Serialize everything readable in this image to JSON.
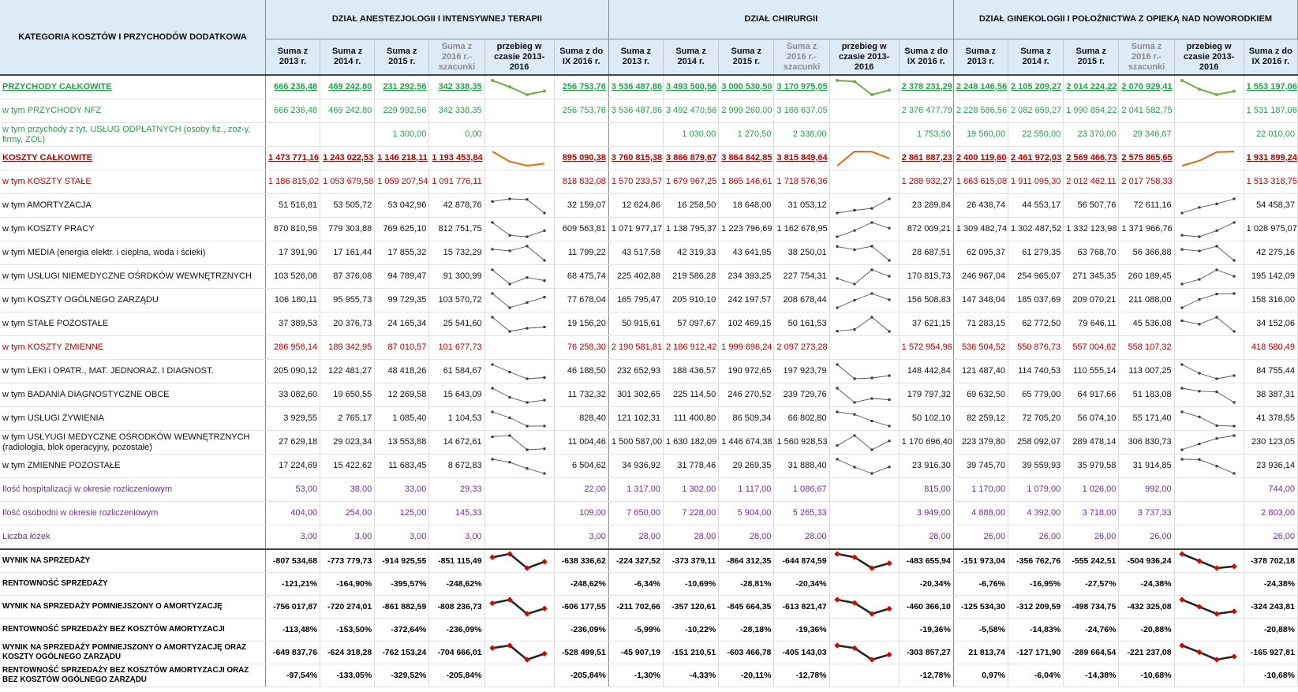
{
  "table": {
    "category_header": "KATEGORIA KOSZTÓW I PRZYCHODÓW DODATKOWA",
    "departments": [
      "DZIAŁ ANESTEZJOLOGII I INTENSYWNEJ TERAPII",
      "DZIAŁ CHIRURGII",
      "DZIAŁ GINEKOLOGII I POŁOŻNICTWA Z OPIEKĄ NAD NOWORODKIEM"
    ],
    "columns": [
      "Suma z 2013 r.",
      "Suma z 2014 r.",
      "Suma z 2015 r.",
      "Suma z 2016 r.-szacunki",
      "przebieg w czasie 2013-2016",
      "Suma z do IX 2016 r."
    ],
    "rows": [
      {
        "label": "PRZYCHODY CAŁKOWITE",
        "style": "hrev",
        "h": "r1",
        "spark": "hrev",
        "d": [
          [
            "666 236,48",
            "469 242,80",
            "231 292,56",
            "342 338,35",
            "256 753,76"
          ],
          [
            "3 536 487,86",
            "3 493 500,56",
            "3 000 530,50",
            "3 170 975,05",
            "2 378 231,29"
          ],
          [
            "2 248 146,56",
            "2 105 209,27",
            "2 014 224,22",
            "2 070 929,41",
            "1 553 197,06"
          ]
        ]
      },
      {
        "label": "w tym PRZYCHODY NFZ",
        "style": "rev",
        "h": "r1",
        "d": [
          [
            "666 236,48",
            "469 242,80",
            "229 992,56",
            "342 338,35",
            "256 753,76"
          ],
          [
            "3 536 487,86",
            "3 492 470,56",
            "2 999 260,00",
            "3 168 637,05",
            "2 376 477,79"
          ],
          [
            "2 228 586,56",
            "2 082 659,27",
            "1 990 854,22",
            "2 041 582,75",
            "1 531 187,06"
          ]
        ]
      },
      {
        "label": "w tym przychody z tyt. USŁUG ODPŁATNYCH (osoby fiz., zoz-y, firmy, ZOL)",
        "style": "rev",
        "h": "r1",
        "d": [
          [
            "",
            "",
            "1 300,00",
            "0,00",
            ""
          ],
          [
            "",
            "1 030,00",
            "1 270,50",
            "2 338,00",
            "1 753,50"
          ],
          [
            "19 560,00",
            "22 550,00",
            "23 370,00",
            "29 346,67",
            "22 010,00"
          ]
        ]
      },
      {
        "label": "KOSZTY CAŁKOWITE",
        "style": "hcost",
        "h": "r1",
        "spark": "hcost",
        "d": [
          [
            "1 473 771,16",
            "1 243 022,53",
            "1 146 218,11",
            "1 193 453,84",
            "895 090,38"
          ],
          [
            "3 760 815,38",
            "3 866 879,67",
            "3 864 842,85",
            "3 815 849,64",
            "2 861 887,23"
          ],
          [
            "2 400 119,60",
            "2 461 972,03",
            "2 569 466,73",
            "2 575 865,65",
            "1 931 899,24"
          ]
        ]
      },
      {
        "label": "w tym KOSZTY STAŁE",
        "style": "sub",
        "h": "r1",
        "d": [
          [
            "1 186 815,02",
            "1 053 679,58",
            "1 059 207,54",
            "1 091 776,11",
            "818 832,08"
          ],
          [
            "1 570 233,57",
            "1 679 967,25",
            "1 865 146,61",
            "1 718 576,36",
            "1 288 932,27"
          ],
          [
            "1 863 615,08",
            "1 911 095,30",
            "2 012 462,11",
            "2 017 758,33",
            "1 513 318,75"
          ]
        ]
      },
      {
        "label": "w tym AMORTYZACJA",
        "style": "norm",
        "h": "r1",
        "spark": "norm",
        "d": [
          [
            "51 516,81",
            "53 505,72",
            "53 042,96",
            "42 878,76",
            "32 159,07"
          ],
          [
            "12 624,86",
            "16 258,50",
            "18 648,00",
            "31 053,12",
            "23 289,84"
          ],
          [
            "26 438,74",
            "44 553,17",
            "56 507,76",
            "72 611,16",
            "54 458,37"
          ]
        ]
      },
      {
        "label": "w tym KOSZTY PRACY",
        "style": "norm",
        "h": "r1",
        "spark": "norm",
        "d": [
          [
            "870 810,59",
            "779 303,88",
            "769 625,10",
            "812 751,75",
            "609 563,81"
          ],
          [
            "1 071 977,17",
            "1 138 795,37",
            "1 223 796,69",
            "1 162 678,95",
            "872 009,21"
          ],
          [
            "1 309 482,74",
            "1 302 487,52",
            "1 332 123,98",
            "1 371 966,76",
            "1 028 975,07"
          ]
        ]
      },
      {
        "label": "w tym MEDIA (energia elektr. i cieplna, woda i ścieki)",
        "style": "norm",
        "h": "r1",
        "spark": "norm",
        "d": [
          [
            "17 391,90",
            "17 161,44",
            "17 855,32",
            "15 732,29",
            "11 799,22"
          ],
          [
            "43 517,58",
            "42 319,33",
            "43 641,95",
            "38 250,01",
            "28 687,51"
          ],
          [
            "62 095,37",
            "61 279,35",
            "63 768,70",
            "56 366,88",
            "42 275,16"
          ]
        ]
      },
      {
        "label": "w tym USŁUGI NIEMEDYCZNE OŚRDKÓW WEWNĘTRZNYCH",
        "style": "norm",
        "h": "r1",
        "spark": "norm",
        "d": [
          [
            "103 526,08",
            "87 376,08",
            "94 789,47",
            "91 300,99",
            "68 475,74"
          ],
          [
            "225 402,88",
            "219 586,28",
            "234 393,25",
            "227 754,31",
            "170 815,73"
          ],
          [
            "246 967,04",
            "254 965,07",
            "271 345,35",
            "260 189,45",
            "195 142,09"
          ]
        ]
      },
      {
        "label": "w tym KOSZTY OGÓLNEGO ZARZĄDU",
        "style": "norm",
        "h": "r1",
        "spark": "norm",
        "d": [
          [
            "106 180,11",
            "95 955,73",
            "99 729,35",
            "103 570,72",
            "77 678,04"
          ],
          [
            "165 795,47",
            "205 910,10",
            "242 197,57",
            "208 678,44",
            "156 508,83"
          ],
          [
            "147 348,04",
            "185 037,69",
            "209 070,21",
            "211 088,00",
            "158 316,00"
          ]
        ]
      },
      {
        "label": "w tym STAŁE POZOSTAŁE",
        "style": "norm",
        "h": "r1",
        "spark": "norm",
        "d": [
          [
            "37 389,53",
            "20 376,73",
            "24 165,34",
            "25 541,60",
            "19 156,20"
          ],
          [
            "50 915,61",
            "57 097,67",
            "102 469,15",
            "50 161,53",
            "37 621,15"
          ],
          [
            "71 283,15",
            "62 772,50",
            "79 646,11",
            "45 536,08",
            "34 152,06"
          ]
        ]
      },
      {
        "label": "w tym KOSZTY ZMIENNE",
        "style": "sub",
        "h": "r1",
        "d": [
          [
            "286 956,14",
            "189 342,95",
            "87 010,57",
            "101 677,73",
            "76 258,30"
          ],
          [
            "2 190 581,81",
            "2 186 912,42",
            "1 999 696,24",
            "2 097 273,28",
            "1 572 954,96"
          ],
          [
            "536 504,52",
            "550 876,73",
            "557 004,62",
            "558 107,32",
            "418 580,49"
          ]
        ]
      },
      {
        "label": "w tym LEKI i OPATR., MAT. JEDNORAZ. I DIAGNOST.",
        "style": "norm",
        "h": "r1",
        "spark": "norm",
        "d": [
          [
            "205 090,12",
            "122 481,27",
            "48 418,26",
            "61 584,67",
            "46 188,50"
          ],
          [
            "232 652,93",
            "188 436,57",
            "190 972,65",
            "197 923,79",
            "148 442,84"
          ],
          [
            "121 487,40",
            "114 740,53",
            "110 555,14",
            "113 007,25",
            "84 755,44"
          ]
        ]
      },
      {
        "label": "w tym BADANIA DIAGNOSTYCZNE OBCE",
        "style": "norm",
        "h": "r1",
        "spark": "norm",
        "d": [
          [
            "33 082,60",
            "19 650,55",
            "12 269,58",
            "15 643,09",
            "11 732,32"
          ],
          [
            "301 302,65",
            "225 114,50",
            "246 270,52",
            "239 729,76",
            "179 797,32"
          ],
          [
            "69 632,50",
            "65 779,00",
            "64 917,66",
            "51 183,08",
            "38 387,31"
          ]
        ]
      },
      {
        "label": "w tym USŁUGI ŻYWIENIA",
        "style": "norm",
        "h": "r1",
        "spark": "norm",
        "d": [
          [
            "3 929,55",
            "2 765,17",
            "1 085,40",
            "1 104,53",
            "828,40"
          ],
          [
            "121 102,31",
            "111 400,80",
            "86 509,34",
            "66 802,80",
            "50 102,10"
          ],
          [
            "82 259,12",
            "72 705,20",
            "56 074,10",
            "55 171,40",
            "41 378,55"
          ]
        ]
      },
      {
        "label": "w tym USŁYUGI MEDYCZNE OŚRODKÓW WEWNĘTRZNYCH (radiologia, blok operacyjny, pozostałe)",
        "style": "norm",
        "h": "r1",
        "spark": "norm",
        "d": [
          [
            "27 629,18",
            "29 023,34",
            "13 553,88",
            "14 672,61",
            "11 004,46"
          ],
          [
            "1 500 587,00",
            "1 630 182,09",
            "1 446 674,38",
            "1 560 928,53",
            "1 170 696,40"
          ],
          [
            "223 379,80",
            "258 092,07",
            "289 478,14",
            "306 830,73",
            "230 123,05"
          ]
        ]
      },
      {
        "label": "w tym ZMIENNE POZOSTAŁE",
        "style": "norm",
        "h": "r1",
        "spark": "norm",
        "d": [
          [
            "17 224,69",
            "15 422,62",
            "11 683,45",
            "8 672,83",
            "6 504,62"
          ],
          [
            "34 936,92",
            "31 778,46",
            "29 269,35",
            "31 888,40",
            "23 916,30"
          ],
          [
            "39 745,70",
            "39 559,93",
            "35 979,58",
            "31 914,85",
            "23 936,14"
          ]
        ]
      },
      {
        "label": "Ilość hospitalizacji w okresie rozliczeniowym",
        "style": "purp",
        "h": "r1",
        "line": "grpline",
        "d": [
          [
            "53,00",
            "38,00",
            "33,00",
            "29,33",
            "22,00"
          ],
          [
            "1 317,00",
            "1 302,00",
            "1 117,00",
            "1 086,67",
            "815,00"
          ],
          [
            "1 170,00",
            "1 079,00",
            "1 026,00",
            "992,00",
            "744,00"
          ]
        ]
      },
      {
        "label": "Ilość osobodni w okresie rozliczeniowym",
        "style": "purp",
        "h": "r1",
        "d": [
          [
            "404,00",
            "254,00",
            "125,00",
            "145,33",
            "109,00"
          ],
          [
            "7 650,00",
            "7 228,00",
            "5 904,00",
            "5 265,33",
            "3 949,00"
          ],
          [
            "4 888,00",
            "4 392,00",
            "3 718,00",
            "3 737,33",
            "2 803,00"
          ]
        ]
      },
      {
        "label": "Liczba łóżek",
        "style": "purp",
        "h": "r1",
        "d": [
          [
            "3,00",
            "3,00",
            "3,00",
            "3,00",
            "3,00"
          ],
          [
            "28,00",
            "28,00",
            "28,00",
            "28,00",
            "28,00"
          ],
          [
            "26,00",
            "26,00",
            "26,00",
            "26,00",
            "26,00"
          ]
        ]
      },
      {
        "label": "WYNIK NA SPRZEDAŻY",
        "style": "res",
        "h": "r2",
        "line": "topline",
        "spark": "bold",
        "d": [
          [
            "-807 534,68",
            "-773 779,73",
            "-914 925,55",
            "-851 115,49",
            "-638 336,62"
          ],
          [
            "-224 327,52",
            "-373 379,11",
            "-864 312,35",
            "-644 874,59",
            "-483 655,94"
          ],
          [
            "-151 973,04",
            "-356 762,76",
            "-555 242,51",
            "-504 936,24",
            "-378 702,18"
          ]
        ]
      },
      {
        "label": "RENTOWNOŚĆ SPRZEDAŻY",
        "style": "res",
        "h": "r2",
        "d": [
          [
            "-121,21%",
            "-164,90%",
            "-395,57%",
            "-248,62%",
            "-248,62%"
          ],
          [
            "-6,34%",
            "-10,69%",
            "-28,81%",
            "-20,34%",
            "-20,34%"
          ],
          [
            "-6,76%",
            "-16,95%",
            "-27,57%",
            "-24,38%",
            "-24,38%"
          ]
        ]
      },
      {
        "label": "WYNIK NA SPRZEDAŻY POMNIEJSZONY O AMORTYZACJĘ",
        "style": "res",
        "h": "r2",
        "line": "grpline",
        "spark": "bold",
        "d": [
          [
            "-756 017,87",
            "-720 274,01",
            "-861 882,59",
            "-808 236,73",
            "-606 177,55"
          ],
          [
            "-211 702,66",
            "-357 120,61",
            "-845 664,35",
            "-613 821,47",
            "-460 366,10"
          ],
          [
            "-125 534,30",
            "-312 209,59",
            "-498 734,75",
            "-432 325,08",
            "-324 243,81"
          ]
        ]
      },
      {
        "label": "RENTOWNOŚĆ SPRZEDAŻY BEZ KOSZTÓW AMORTYZACJI",
        "style": "res",
        "h": "r2",
        "d": [
          [
            "-113,48%",
            "-153,50%",
            "-372,64%",
            "-236,09%",
            "-236,09%"
          ],
          [
            "-5,99%",
            "-10,22%",
            "-28,18%",
            "-19,36%",
            "-19,36%"
          ],
          [
            "-5,58%",
            "-14,83%",
            "-24,76%",
            "-20,88%",
            "-20,88%"
          ]
        ]
      },
      {
        "label": "WYNIK NA SPRZEDAŻY POMNIEJSZONY O AMORTYZACJĘ ORAZ KOSZTY OGÓLNEGO ZARZĄDU",
        "style": "res",
        "h": "r2",
        "line": "grpline",
        "spark": "bold",
        "d": [
          [
            "-649 837,76",
            "-624 318,28",
            "-762 153,24",
            "-704 666,01",
            "-528 499,51"
          ],
          [
            "-45 907,19",
            "-151 210,51",
            "-603 466,78",
            "-405 143,03",
            "-303 857,27"
          ],
          [
            "21 813,74",
            "-127 171,90",
            "-289 664,54",
            "-221 237,08",
            "-165 927,81"
          ]
        ]
      },
      {
        "label": "RENTOWNOŚĆ SPRZEDAŻY BEZ KOSZTÓW AMORTYZACJI ORAZ BEZ KOSZTÓW OGÓLNEGO ZARZĄDU",
        "style": "res",
        "h": "r2",
        "d": [
          [
            "-97,54%",
            "-133,05%",
            "-329,52%",
            "-205,84%",
            "-205,84%"
          ],
          [
            "-1,30%",
            "-4,33%",
            "-20,11%",
            "-12,78%",
            "-12,78%"
          ],
          [
            "0,97%",
            "-6,04%",
            "-14,38%",
            "-10,68%",
            "-10,68%"
          ]
        ]
      }
    ]
  },
  "colors": {
    "header_bg": "#ddebf7",
    "revenue": "#27a34b",
    "cost": "#c00000",
    "count": "#7030a0",
    "spark_revenue": "#70ad47",
    "spark_cost": "#e46c0a",
    "spark_marker": "#e00000"
  }
}
